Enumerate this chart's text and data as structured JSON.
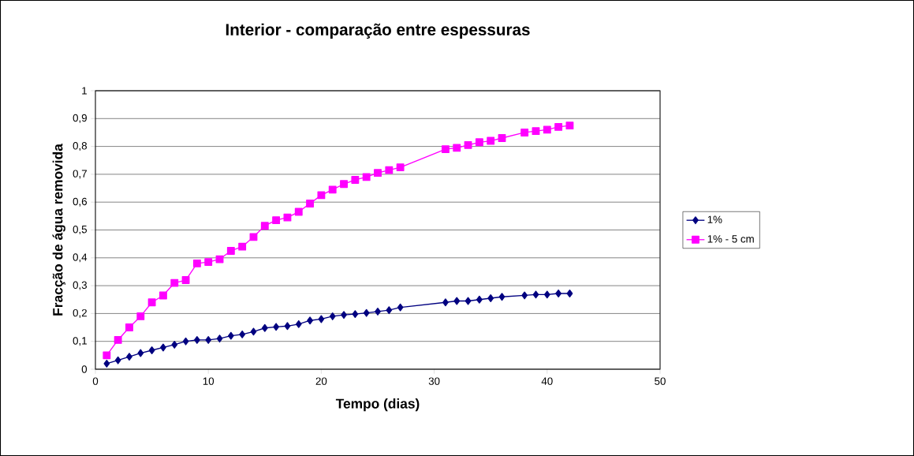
{
  "chart_data": {
    "type": "line",
    "title": "Interior - comparação entre espessuras",
    "xlabel": "Tempo (dias)",
    "ylabel": "Fracção de água removida",
    "xlim": [
      0,
      50
    ],
    "xticks": [
      0,
      10,
      20,
      30,
      40,
      50
    ],
    "ylim": [
      0,
      1
    ],
    "yticks": [
      0,
      {
        "value": 0.1,
        "label": "0,1"
      },
      {
        "value": 0.2,
        "label": "0,2"
      },
      {
        "value": 0.3,
        "label": "0,3"
      },
      {
        "value": 0.4,
        "label": "0,4"
      },
      {
        "value": 0.5,
        "label": "0,5"
      },
      {
        "value": 0.6,
        "label": "0,6"
      },
      {
        "value": 0.7,
        "label": "0,7"
      },
      {
        "value": 0.8,
        "label": "0,8"
      },
      {
        "value": 0.9,
        "label": "0,9"
      },
      1
    ],
    "grid": "y",
    "legend": "right",
    "x": [
      1,
      2,
      3,
      4,
      5,
      6,
      7,
      8,
      9,
      10,
      11,
      12,
      13,
      14,
      15,
      16,
      17,
      18,
      19,
      20,
      21,
      22,
      23,
      24,
      25,
      26,
      27,
      31,
      32,
      33,
      34,
      35,
      36,
      38,
      39,
      40,
      41,
      42
    ],
    "series": [
      {
        "name": "1%",
        "color": "#000080",
        "marker": "diamond",
        "values": [
          0.02,
          0.032,
          0.045,
          0.058,
          0.068,
          0.078,
          0.088,
          0.1,
          0.105,
          0.105,
          0.11,
          0.12,
          0.125,
          0.135,
          0.148,
          0.152,
          0.155,
          0.162,
          0.175,
          0.18,
          0.19,
          0.195,
          0.198,
          0.202,
          0.207,
          0.212,
          0.222,
          0.24,
          0.245,
          0.245,
          0.25,
          0.255,
          0.26,
          0.265,
          0.268,
          0.268,
          0.272,
          0.272
        ]
      },
      {
        "name": "1% - 5 cm",
        "color": "#ff00ff",
        "marker": "square",
        "values": [
          0.05,
          0.105,
          0.15,
          0.19,
          0.24,
          0.265,
          0.31,
          0.32,
          0.38,
          0.385,
          0.395,
          0.425,
          0.44,
          0.475,
          0.515,
          0.535,
          0.545,
          0.565,
          0.595,
          0.625,
          0.645,
          0.665,
          0.68,
          0.69,
          0.705,
          0.715,
          0.725,
          0.79,
          0.795,
          0.805,
          0.815,
          0.82,
          0.83,
          0.85,
          0.855,
          0.86,
          0.87,
          0.875
        ]
      }
    ]
  }
}
